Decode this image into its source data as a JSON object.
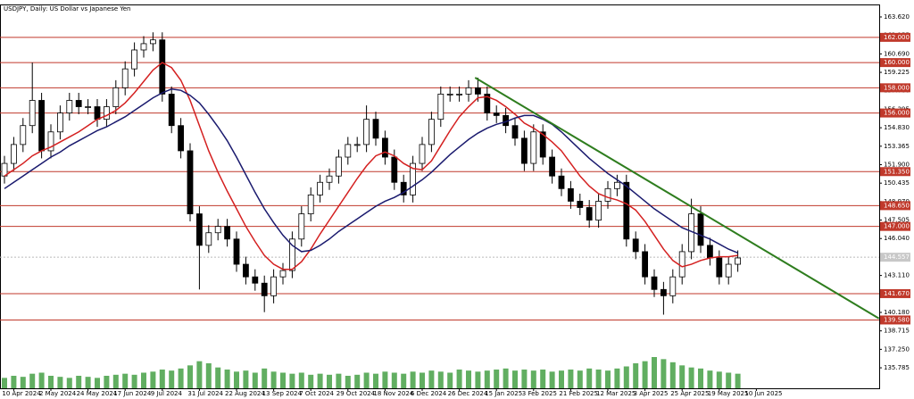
{
  "chart_data": {
    "type": "candlestick",
    "title": "USDJPY, Daily:  US Dollar vs Japanese Yen",
    "categories": [
      null,
      "10 Apr 2024",
      null,
      null,
      null,
      "2 May 2024",
      null,
      null,
      null,
      "24 May 2024",
      null,
      null,
      null,
      "17 Jun 2024",
      null,
      null,
      null,
      "9 Jul 2024",
      null,
      null,
      null,
      "31 Jul 2024",
      null,
      null,
      null,
      "22 Aug 2024",
      null,
      null,
      null,
      "13 Sep 2024",
      null,
      null,
      null,
      "7 Oct 2024",
      null,
      null,
      null,
      "29 Oct 2024",
      null,
      null,
      null,
      "18 Nov 2024",
      null,
      null,
      null,
      "6 Dec 2024",
      null,
      null,
      null,
      "26 Dec 2024",
      null,
      null,
      null,
      "15 Jan 2025",
      null,
      null,
      null,
      "3 Feb 2025",
      null,
      null,
      null,
      "21 Feb 2025",
      null,
      null,
      null,
      "12 Mar 2025",
      null,
      null,
      null,
      "3 Apr 2025",
      null,
      null,
      null,
      "25 Apr 2025",
      null,
      null,
      null,
      "19 May 2025",
      null,
      null,
      null,
      "10 Jun 2025"
    ],
    "open": [
      151,
      152,
      153.5,
      155,
      157,
      153,
      154.5,
      156,
      157,
      156.5,
      156.5,
      155.5,
      156.5,
      158,
      159.5,
      161,
      161.5,
      161.8,
      157.5,
      155,
      153,
      148,
      145.5,
      146.5,
      147,
      146,
      144,
      143,
      142.5,
      141.5,
      143,
      143.5,
      146,
      148,
      149.5,
      150.5,
      151,
      152.5,
      153.5,
      153.5,
      155.5,
      154,
      152.5,
      150.5,
      149.5,
      152,
      153.5,
      155.5,
      157.5,
      157.5,
      157.5,
      158,
      157.5,
      156,
      155.8,
      155,
      154,
      152,
      154.5,
      152.5,
      151,
      150,
      149,
      148.5,
      147.5,
      149,
      150,
      150.5,
      146,
      145,
      143,
      142,
      141.5,
      143,
      145,
      148,
      145.5,
      144.5,
      143,
      144,
      null,
      null
    ],
    "high": [
      152.6,
      154.1,
      155.6,
      160,
      157.6,
      155.1,
      156.6,
      157.6,
      157.6,
      157.1,
      157.1,
      157.1,
      158.6,
      160.1,
      161.6,
      162.1,
      162.4,
      162.4,
      158.1,
      155.6,
      153.6,
      148.6,
      147.1,
      147.6,
      147.6,
      146.6,
      144.6,
      143.6,
      143.1,
      143.6,
      144.1,
      146.6,
      148.6,
      150.1,
      151.1,
      151.6,
      153.1,
      154.1,
      154.1,
      156.6,
      156.1,
      154.6,
      153.1,
      151.1,
      152.6,
      154.1,
      156.1,
      158.1,
      158.1,
      158.1,
      158.6,
      158.8,
      158.1,
      156.6,
      156.4,
      155.6,
      154.6,
      155.1,
      155.1,
      153.1,
      151.6,
      150.6,
      149.6,
      149.1,
      149.6,
      150.6,
      151.1,
      151.1,
      146.6,
      145.6,
      143.6,
      142.6,
      143.6,
      145.6,
      149.2,
      148.6,
      146.1,
      145.1,
      144.6,
      145.1,
      null,
      null
    ],
    "low": [
      150.4,
      151.4,
      152.9,
      154.4,
      152.4,
      152.4,
      153.9,
      155.4,
      155.9,
      155.9,
      154.9,
      154.9,
      155.9,
      157.4,
      158.9,
      160.4,
      160.9,
      156.9,
      154.4,
      152.4,
      147.4,
      142,
      144.9,
      145.9,
      145.4,
      143.4,
      142.4,
      141.9,
      140.2,
      140.9,
      142.4,
      142.9,
      145.4,
      147.4,
      148.9,
      149.9,
      150.4,
      151.9,
      152.9,
      152.9,
      153.4,
      151.9,
      149.9,
      148.9,
      148.9,
      151.4,
      152.9,
      154.9,
      156.9,
      156.9,
      156.9,
      156.9,
      155.4,
      155.2,
      154.4,
      153.4,
      151.4,
      151.4,
      151.9,
      150.4,
      149.4,
      148.4,
      147.9,
      146.9,
      146.9,
      148.4,
      149.4,
      145.4,
      144.4,
      142.4,
      141.4,
      140,
      140.9,
      142.4,
      144.4,
      144.9,
      143.9,
      142.4,
      142.4,
      143.4,
      null,
      null
    ],
    "close": [
      152,
      153.5,
      155,
      157,
      153,
      154.5,
      156,
      157,
      156.5,
      156.5,
      155.5,
      156.5,
      158,
      159.5,
      161,
      161.5,
      161.8,
      157.5,
      155,
      153,
      148,
      145.5,
      146.5,
      147,
      146,
      144,
      143,
      142.5,
      141.5,
      143,
      143.5,
      146,
      148,
      149.5,
      150.5,
      151,
      152.5,
      153.5,
      153.5,
      155.5,
      154,
      152.5,
      150.5,
      149.5,
      152,
      153.5,
      155.5,
      157.5,
      157.5,
      157.5,
      158,
      157.5,
      156,
      155.8,
      155,
      154,
      152,
      154.5,
      152.5,
      151,
      150,
      149,
      148.5,
      147.5,
      149,
      150,
      150.5,
      146,
      145,
      143,
      142,
      141.5,
      143,
      145,
      148,
      145.5,
      144.5,
      143,
      144,
      144.5,
      null,
      null
    ],
    "series": [
      {
        "color": "#d42020",
        "values": [
          151,
          151.5,
          152,
          152.6,
          153,
          153.3,
          153.7,
          154.1,
          154.5,
          155,
          155.5,
          155.8,
          156.2,
          156.8,
          157.6,
          158.5,
          159.4,
          160,
          159.6,
          158.6,
          157,
          155,
          153,
          151.3,
          149.8,
          148.4,
          147,
          145.8,
          144.7,
          144,
          143.6,
          143.6,
          144.2,
          145.2,
          146.4,
          147.5,
          148.6,
          149.7,
          150.8,
          151.8,
          152.6,
          152.9,
          152.6,
          152,
          151.6,
          151.5,
          152.2,
          153.4,
          154.6,
          155.7,
          156.5,
          157.2,
          157.3,
          157,
          156.5,
          155.9,
          155.2,
          154.8,
          154.3,
          153.7,
          153,
          152,
          151,
          150.2,
          149.6,
          149.3,
          149.1,
          148.8,
          148.3,
          147.4,
          146.3,
          145.2,
          144.3,
          143.8,
          144,
          144.3,
          144.5,
          144.6,
          144.6,
          144.7,
          null,
          null
        ]
      },
      {
        "color": "#1a1a6e",
        "values": [
          150,
          150.5,
          151,
          151.5,
          152,
          152.5,
          152.9,
          153.4,
          153.8,
          154.2,
          154.6,
          154.9,
          155.3,
          155.7,
          156.2,
          156.7,
          157.2,
          157.6,
          157.9,
          157.8,
          157.4,
          156.8,
          155.9,
          154.9,
          153.8,
          152.5,
          151.1,
          149.7,
          148.4,
          147.3,
          146.3,
          145.5,
          145,
          145.1,
          145.5,
          146,
          146.6,
          147.1,
          147.6,
          148.1,
          148.6,
          149,
          149.3,
          149.7,
          150.2,
          150.7,
          151.3,
          152,
          152.7,
          153.3,
          153.9,
          154.4,
          154.8,
          155.1,
          155.3,
          155.6,
          155.8,
          155.8,
          155.5,
          155.1,
          154.5,
          153.8,
          153.1,
          152.4,
          151.8,
          151.2,
          150.7,
          150.2,
          149.6,
          149,
          148.4,
          147.9,
          147.4,
          146.9,
          146.6,
          146.3,
          146,
          145.6,
          145.2,
          144.9,
          null,
          null
        ]
      }
    ],
    "volume": {
      "color": "#3a9a3a",
      "values": [
        10,
        12,
        11,
        14,
        15,
        12,
        11,
        10,
        12,
        11,
        10,
        12,
        13,
        14,
        13,
        15,
        16,
        18,
        17,
        19,
        22,
        26,
        24,
        20,
        18,
        16,
        17,
        15,
        19,
        16,
        15,
        14,
        15,
        13,
        14,
        13,
        14,
        12,
        13,
        15,
        14,
        16,
        15,
        14,
        16,
        15,
        17,
        16,
        15,
        18,
        17,
        16,
        17,
        18,
        19,
        17,
        18,
        17,
        18,
        16,
        17,
        18,
        17,
        19,
        18,
        17,
        19,
        21,
        24,
        26,
        30,
        28,
        25,
        22,
        20,
        19,
        17,
        16,
        15,
        14,
        null,
        null
      ]
    },
    "trendline": {
      "color": "#2e7d1e",
      "x": [
        50.7,
        94.2
      ],
      "values": [
        158.8,
        139.7
      ]
    },
    "levels": [
      {
        "value": 162,
        "label": "162.000"
      },
      {
        "value": 160,
        "label": "160.000"
      },
      {
        "value": 158,
        "label": "158.000"
      },
      {
        "value": 156,
        "label": "156.000"
      },
      {
        "value": 151.35,
        "label": "151.350"
      },
      {
        "value": 148.65,
        "label": "148.650"
      },
      {
        "value": 147,
        "label": "147.000"
      },
      {
        "value": 141.67,
        "label": "141.670"
      },
      {
        "value": 139.58,
        "label": "139.580"
      }
    ],
    "level_color": "#c0392b",
    "last_price": {
      "value": 144.557,
      "label": "144.557"
    },
    "ylim": [
      134.16,
      164.61
    ],
    "yticks": [
      {
        "value": 163.62,
        "label": "163.620"
      },
      {
        "value": 162.155,
        "label": "162.155"
      },
      {
        "value": 160.69,
        "label": "160.690"
      },
      {
        "value": 159.225,
        "label": "159.225"
      },
      {
        "value": 157.76,
        "label": "157.760"
      },
      {
        "value": 156.295,
        "label": "156.295"
      },
      {
        "value": 154.83,
        "label": "154.830"
      },
      {
        "value": 153.365,
        "label": "153.365"
      },
      {
        "value": 151.9,
        "label": "151.900"
      },
      {
        "value": 150.435,
        "label": "150.435"
      },
      {
        "value": 148.97,
        "label": "148.970"
      },
      {
        "value": 147.505,
        "label": "147.505"
      },
      {
        "value": 146.04,
        "label": "146.040"
      },
      {
        "value": 144.575,
        "label": "144.575"
      },
      {
        "value": 143.11,
        "label": "143.110"
      },
      {
        "value": 141.645,
        "label": "141.645"
      },
      {
        "value": 140.18,
        "label": "140.180"
      },
      {
        "value": 138.715,
        "label": "138.715"
      },
      {
        "value": 137.25,
        "label": "137.250"
      },
      {
        "value": 135.785,
        "label": "135.785"
      }
    ]
  }
}
